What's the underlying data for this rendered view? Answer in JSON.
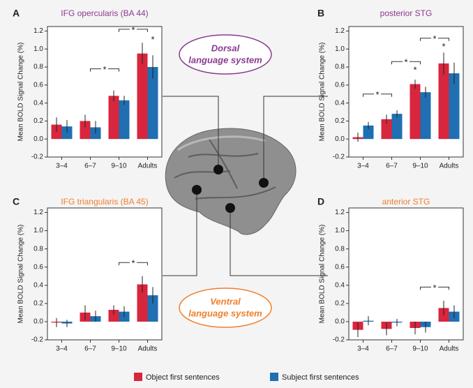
{
  "chart_data": [
    {
      "type": "bar",
      "panel": "A",
      "title": "IFG opercularis (BA 44)",
      "title_color": "#8b3a8f",
      "y_label": "Mean BOLD Signal Change (%)",
      "categories": [
        "3–4",
        "6–7",
        "9–10",
        "Adults"
      ],
      "series": [
        {
          "name": "Object first sentences",
          "color": "#d7263d",
          "values": [
            0.16,
            0.2,
            0.48,
            0.95
          ],
          "errors": [
            0.08,
            0.07,
            0.06,
            0.12
          ]
        },
        {
          "name": "Subject first sentences",
          "color": "#1f6fb2",
          "values": [
            0.14,
            0.13,
            0.43,
            0.8
          ],
          "errors": [
            0.07,
            0.07,
            0.05,
            0.13
          ]
        }
      ],
      "ylim": [
        -0.2,
        1.25
      ],
      "yticks": [
        -0.2,
        {
          "value": 0,
          "label": "0.0"
        },
        0.2,
        0.4,
        0.6,
        0.8,
        {
          "value": 1,
          "label": "1.0"
        },
        1.2
      ],
      "annotations": [
        "*",
        "*",
        "*"
      ]
    },
    {
      "type": "bar",
      "panel": "B",
      "title": "posterior STG",
      "title_color": "#8b3a8f",
      "y_label": "Mean BOLD Signal Change (%)",
      "categories": [
        "3–4",
        "6–7",
        "9–10",
        "Adults"
      ],
      "series": [
        {
          "name": "Object first sentences",
          "color": "#d7263d",
          "values": [
            0.02,
            0.22,
            0.61,
            0.84
          ],
          "errors": [
            0.05,
            0.05,
            0.05,
            0.12
          ]
        },
        {
          "name": "Subject first sentences",
          "color": "#1f6fb2",
          "values": [
            0.15,
            0.28,
            0.52,
            0.73
          ],
          "errors": [
            0.04,
            0.04,
            0.06,
            0.12
          ]
        }
      ],
      "ylim": [
        -0.2,
        1.25
      ],
      "yticks": [
        -0.2,
        {
          "value": 0,
          "label": "0.0"
        },
        0.2,
        0.4,
        0.6,
        0.8,
        {
          "value": 1,
          "label": "1.0"
        },
        1.2
      ],
      "annotations": [
        "*",
        "*",
        "*",
        "*",
        "*"
      ]
    },
    {
      "type": "bar",
      "panel": "C",
      "title": "IFG triangularis (BA 45)",
      "title_color": "#f07f2e",
      "y_label": "Mean BOLD Signal Change (%)",
      "categories": [
        "3–4",
        "6–7",
        "9–10",
        "Adults"
      ],
      "series": [
        {
          "name": "Object first sentences",
          "color": "#d7263d",
          "values": [
            -0.01,
            0.1,
            0.13,
            0.41
          ],
          "errors": [
            0.05,
            0.08,
            0.05,
            0.09
          ]
        },
        {
          "name": "Subject first sentences",
          "color": "#1f6fb2",
          "values": [
            -0.02,
            0.06,
            0.11,
            0.29
          ],
          "errors": [
            0.04,
            0.06,
            0.06,
            0.09
          ]
        }
      ],
      "ylim": [
        -0.2,
        1.25
      ],
      "yticks": [
        -0.2,
        {
          "value": 0,
          "label": "0.0"
        },
        0.2,
        0.4,
        0.6,
        0.8,
        {
          "value": 1,
          "label": "1.0"
        },
        1.2
      ],
      "annotations": [
        "*"
      ]
    },
    {
      "type": "bar",
      "panel": "D",
      "title": "anterior STG",
      "title_color": "#f07f2e",
      "y_label": "Mean BOLD Signal Change (%)",
      "categories": [
        "3–4",
        "6–7",
        "9–10",
        "Adults"
      ],
      "series": [
        {
          "name": "Object first sentences",
          "color": "#d7263d",
          "values": [
            -0.09,
            -0.08,
            -0.07,
            0.15
          ],
          "errors": [
            0.08,
            0.07,
            0.07,
            0.08
          ]
        },
        {
          "name": "Subject first sentences",
          "color": "#1f6fb2",
          "values": [
            0.01,
            -0.01,
            -0.06,
            0.11
          ],
          "errors": [
            0.05,
            0.04,
            0.06,
            0.07
          ]
        }
      ],
      "ylim": [
        -0.2,
        1.25
      ],
      "yticks": [
        -0.2,
        {
          "value": 0,
          "label": "0.0"
        },
        0.2,
        0.4,
        0.6,
        0.8,
        {
          "value": 1,
          "label": "1.0"
        },
        1.2
      ],
      "annotations": [
        "*"
      ]
    }
  ],
  "dorsal_label": [
    "Dorsal",
    "language system"
  ],
  "ventral_label": [
    "Ventral",
    "language system"
  ]
}
